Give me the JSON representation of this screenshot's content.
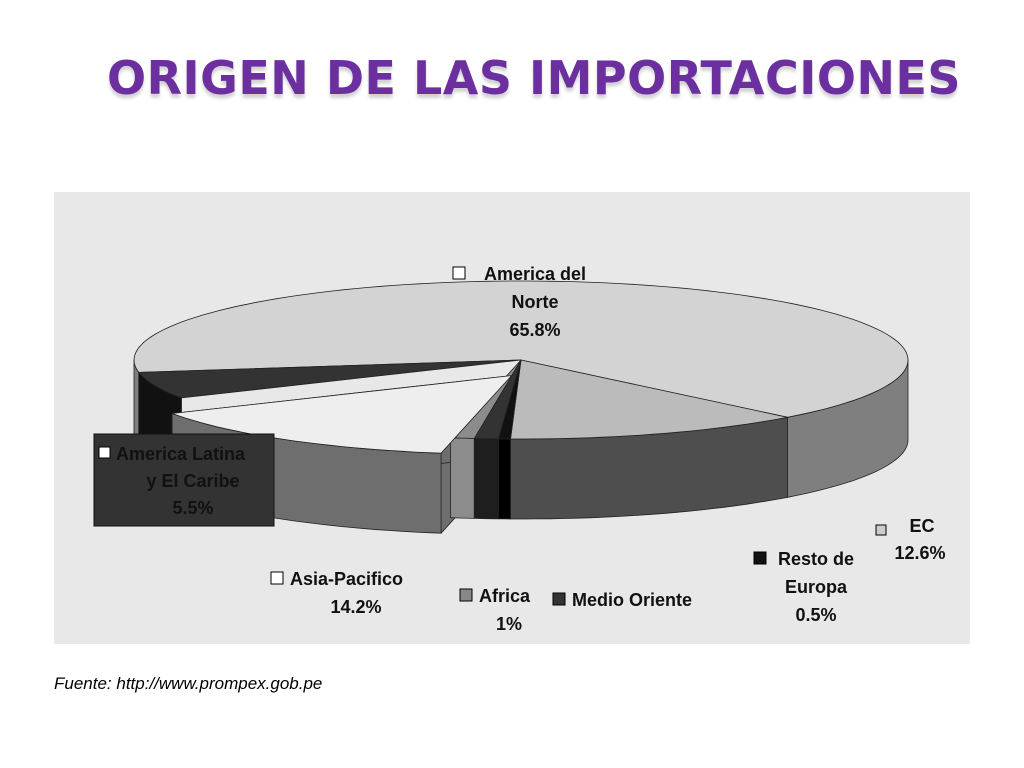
{
  "title": "ORIGEN DE LAS IMPORTACIONES",
  "source": "Fuente: http://www.prompex.gob.pe",
  "colors": {
    "title": "#6b2fa0",
    "panel_background": "#e8e8e8"
  },
  "chart_data": {
    "type": "pie",
    "style": "3d-exploded",
    "slices": [
      {
        "label": "America del Norte",
        "value": 65.8,
        "value_text": "65.8%",
        "top_color": "#d3d3d3",
        "side_color": "#7f7f7f",
        "legend_color": "#ffffff"
      },
      {
        "label": "EC",
        "value": 12.6,
        "value_text": "12.6%",
        "top_color": "#bbbbbb",
        "side_color": "#4e4e4e",
        "legend_color": "#cccccc"
      },
      {
        "label": "Resto de Europa",
        "value": 0.5,
        "value_text": "0.5%",
        "top_color": "#111111",
        "side_color": "#000000",
        "legend_color": "#111111"
      },
      {
        "label": "Medio Oriente",
        "value": 1.0,
        "value_text": "",
        "top_color": "#333333",
        "side_color": "#1e1e1e",
        "legend_color": "#333333"
      },
      {
        "label": "Africa",
        "value": 1.0,
        "value_text": "1%",
        "top_color": "#8c8c8c",
        "side_color": "#8c8c8c",
        "legend_color": "#888888"
      },
      {
        "label": "Asia-Pacifico",
        "value": 14.2,
        "value_text": "14.2%",
        "top_color": "#eeeeee",
        "side_color": "#6e6e6e",
        "legend_color": "#ffffff"
      },
      {
        "label": "America Latina y El Caribe",
        "value": 5.5,
        "value_text": "5.5%",
        "top_color": "#333333",
        "side_color": "#111111",
        "legend_color": "#ffffff"
      }
    ]
  }
}
